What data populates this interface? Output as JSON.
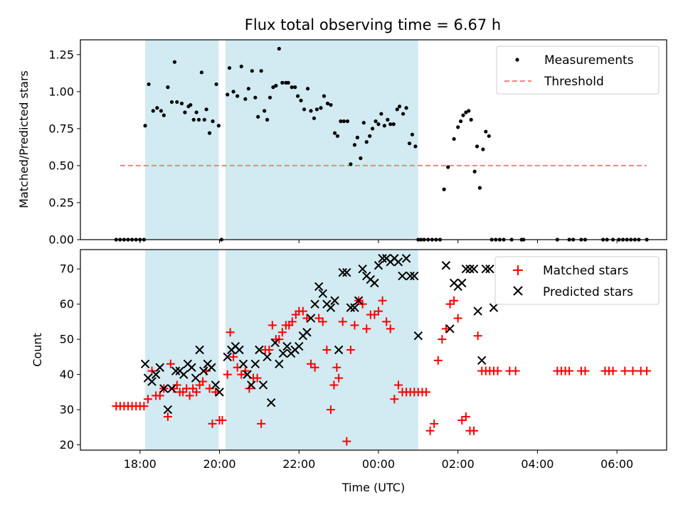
{
  "title": "Flux total observing time = 6.67 h",
  "colors": {
    "shade": "#add8e6",
    "measurement": "#000000",
    "threshold": "#ff7f7f",
    "matched": "#ff0000",
    "predicted": "#000000"
  },
  "chart_data": [
    {
      "type": "scatter",
      "name": "ratio-panel",
      "ylabel": "Matched/Predicted stars",
      "xlabel": "",
      "xlim": [
        16.5,
        31.25
      ],
      "ylim": [
        0,
        1.35
      ],
      "yticks": [
        0,
        0.25,
        0.5,
        0.75,
        1.0,
        1.25
      ],
      "ytick_labels": [
        "0.00",
        "0.25",
        "0.50",
        "0.75",
        "1.00",
        "1.25"
      ],
      "grid": false,
      "legend": {
        "placement": "upper-right",
        "entries": [
          "Measurements",
          "Threshold"
        ]
      },
      "shaded_intervals": [
        [
          18.13,
          19.98
        ],
        [
          20.15,
          25.0
        ]
      ],
      "threshold": {
        "name": "Threshold",
        "y": 0.5,
        "x": [
          17.5,
          30.75
        ]
      },
      "series": [
        {
          "name": "Measurements",
          "x": [
            17.4,
            17.5,
            17.6,
            17.7,
            17.8,
            17.9,
            18.0,
            18.1,
            18.13,
            18.22,
            18.33,
            18.43,
            18.53,
            18.6,
            18.7,
            18.8,
            18.87,
            18.93,
            19.05,
            19.13,
            19.22,
            19.27,
            19.35,
            19.42,
            19.48,
            19.55,
            19.62,
            19.67,
            19.75,
            19.83,
            19.92,
            19.98,
            20.05,
            20.2,
            20.25,
            20.35,
            20.45,
            20.55,
            20.65,
            20.73,
            20.82,
            20.9,
            20.97,
            21.05,
            21.13,
            21.2,
            21.27,
            21.35,
            21.42,
            21.5,
            21.58,
            21.67,
            21.73,
            21.82,
            21.9,
            21.97,
            22.05,
            22.13,
            22.22,
            22.3,
            22.38,
            22.45,
            22.55,
            22.63,
            22.72,
            22.8,
            22.9,
            22.97,
            23.05,
            23.13,
            23.22,
            23.3,
            23.4,
            23.47,
            23.55,
            23.63,
            23.7,
            23.78,
            23.85,
            23.93,
            24.0,
            24.07,
            24.15,
            24.23,
            24.3,
            24.38,
            24.47,
            24.53,
            24.62,
            24.7,
            24.78,
            24.85,
            24.93,
            25.0,
            25.07,
            25.15,
            25.25,
            25.35,
            25.45,
            25.55,
            25.65,
            25.75,
            25.9,
            26.0,
            26.07,
            26.13,
            26.2,
            26.27,
            26.33,
            26.42,
            26.48,
            26.55,
            26.63,
            26.7,
            26.78,
            26.85,
            26.95,
            27.05,
            27.15,
            27.35,
            27.6,
            27.65,
            28.5,
            28.8,
            28.9,
            29.1,
            29.2,
            29.65,
            29.75,
            29.9,
            30.05,
            30.15,
            30.25,
            30.35,
            30.45,
            30.55,
            30.75
          ],
          "y": [
            0,
            0,
            0,
            0,
            0,
            0,
            0,
            0,
            0.77,
            1.05,
            0.87,
            0.89,
            0.87,
            0.84,
            1.03,
            0.93,
            1.2,
            0.93,
            0.92,
            0.86,
            0.9,
            0.91,
            0.81,
            0.86,
            0.81,
            1.13,
            0.81,
            0.88,
            0.72,
            0.8,
            1.05,
            0.77,
            0.0,
            0.98,
            1.16,
            1.0,
            0.97,
            1.17,
            0.95,
            1.02,
            1.14,
            0.96,
            0.83,
            1.14,
            0.87,
            0.81,
            0.96,
            1.03,
            1.04,
            1.29,
            1.06,
            1.06,
            1.06,
            1.03,
            1.03,
            0.97,
            0.94,
            0.88,
            1.02,
            0.87,
            0.82,
            0.88,
            0.89,
            0.97,
            0.92,
            0.91,
            0.72,
            0.7,
            0.8,
            0.8,
            0.8,
            0.51,
            0.64,
            0.69,
            0.55,
            0.79,
            0.66,
            0.7,
            0.75,
            0.8,
            0.78,
            0.85,
            0.77,
            0.81,
            0.78,
            0.78,
            0.88,
            0.9,
            0.85,
            0.89,
            0.65,
            0.71,
            0.63,
            0,
            0,
            0,
            0,
            0,
            0,
            0,
            0.34,
            0.49,
            0.68,
            0.76,
            0.8,
            0.84,
            0.86,
            0.87,
            0.81,
            0.46,
            0.63,
            0.35,
            0.61,
            0.73,
            0.7,
            0,
            0,
            0,
            0,
            0,
            0,
            0,
            0,
            0,
            0,
            0,
            0,
            0,
            0,
            0,
            0,
            0,
            0,
            0,
            0,
            0,
            0
          ]
        }
      ]
    },
    {
      "type": "scatter",
      "name": "count-panel",
      "ylabel": "Count",
      "xlabel": "Time (UTC)",
      "xlim": [
        16.5,
        31.25
      ],
      "ylim": [
        18.5,
        75.5
      ],
      "yticks": [
        20,
        30,
        40,
        50,
        60,
        70
      ],
      "ytick_labels": [
        "20",
        "30",
        "40",
        "50",
        "60",
        "70"
      ],
      "xticks": [
        18,
        20,
        22,
        24,
        26,
        28,
        30
      ],
      "xtick_labels": [
        "18:00",
        "20:00",
        "22:00",
        "00:00",
        "02:00",
        "04:00",
        "06:00"
      ],
      "grid": false,
      "legend": {
        "placement": "upper-right",
        "entries": [
          "Matched stars",
          "Predicted stars"
        ]
      },
      "shaded_intervals": [
        [
          18.13,
          19.98
        ],
        [
          20.15,
          25.0
        ]
      ],
      "series": [
        {
          "name": "Matched stars",
          "x": [
            17.4,
            17.5,
            17.6,
            17.7,
            17.8,
            17.9,
            18.0,
            18.1,
            18.2,
            18.3,
            18.4,
            18.5,
            18.6,
            18.7,
            18.77,
            18.85,
            18.93,
            19.0,
            19.08,
            19.17,
            19.25,
            19.33,
            19.42,
            19.5,
            19.58,
            19.67,
            19.75,
            19.82,
            19.9,
            20.0,
            20.07,
            20.2,
            20.27,
            20.35,
            20.45,
            20.55,
            20.65,
            20.75,
            20.85,
            20.95,
            21.05,
            21.15,
            21.25,
            21.33,
            21.42,
            21.5,
            21.58,
            21.67,
            21.75,
            21.83,
            21.92,
            22.0,
            22.1,
            22.2,
            22.3,
            22.4,
            22.5,
            22.6,
            22.7,
            22.8,
            22.88,
            22.95,
            23.0,
            23.1,
            23.2,
            23.3,
            23.4,
            23.5,
            23.6,
            23.7,
            23.8,
            23.9,
            24.0,
            24.1,
            24.2,
            24.3,
            24.4,
            24.5,
            24.6,
            24.7,
            24.8,
            24.9,
            25.0,
            25.1,
            25.2,
            25.3,
            25.4,
            25.5,
            25.6,
            25.7,
            25.8,
            25.9,
            26.0,
            26.1,
            26.2,
            26.3,
            26.4,
            26.5,
            26.6,
            26.7,
            26.8,
            26.9,
            27.0,
            27.3,
            27.45,
            28.5,
            28.6,
            28.7,
            28.8,
            29.1,
            29.2,
            29.7,
            29.8,
            29.9,
            30.2,
            30.4,
            30.6,
            30.75
          ],
          "y": [
            31,
            31,
            31,
            31,
            31,
            31,
            31,
            31,
            33,
            41,
            34,
            34,
            36,
            28,
            43,
            36,
            37,
            35,
            35,
            36,
            34,
            36,
            35,
            37,
            38,
            41,
            36,
            26,
            35,
            27,
            27,
            40,
            52,
            45,
            42,
            40,
            41,
            36,
            39,
            39,
            26,
            47,
            47,
            54,
            50,
            50,
            52,
            54,
            54,
            55,
            57,
            58,
            58,
            56,
            43,
            42,
            56,
            55,
            47,
            30,
            37,
            42,
            39,
            55,
            21,
            47,
            54,
            61,
            60,
            53,
            57,
            57,
            58,
            61,
            55,
            53,
            33,
            37,
            35,
            35,
            35,
            35,
            35,
            35,
            35,
            24,
            26,
            44,
            50,
            53,
            60,
            61,
            56,
            27,
            28,
            24,
            24,
            51,
            41,
            41,
            41,
            41,
            41,
            41,
            41,
            41,
            41,
            41,
            41,
            41,
            41,
            41,
            41,
            41,
            41,
            41,
            41,
            41
          ]
        },
        {
          "name": "Predicted stars",
          "x": [
            18.13,
            18.2,
            18.3,
            18.4,
            18.5,
            18.6,
            18.7,
            18.8,
            18.9,
            19.0,
            19.1,
            19.2,
            19.3,
            19.4,
            19.5,
            19.6,
            19.7,
            19.8,
            19.9,
            20.0,
            20.2,
            20.3,
            20.4,
            20.5,
            20.6,
            20.7,
            20.8,
            20.9,
            21.0,
            21.1,
            21.2,
            21.3,
            21.4,
            21.5,
            21.6,
            21.7,
            21.8,
            21.9,
            22.0,
            22.1,
            22.2,
            22.3,
            22.4,
            22.5,
            22.6,
            22.7,
            22.8,
            22.9,
            23.0,
            23.1,
            23.2,
            23.3,
            23.4,
            23.5,
            23.6,
            23.7,
            23.8,
            23.9,
            24.0,
            24.1,
            24.2,
            24.3,
            24.4,
            24.5,
            24.6,
            24.7,
            24.8,
            24.9,
            25.0,
            25.7,
            25.8,
            25.9,
            26.0,
            26.1,
            26.2,
            26.3,
            26.4,
            26.5,
            26.6,
            26.7,
            26.8,
            26.9
          ],
          "y": [
            43,
            39,
            38,
            40,
            42,
            36,
            30,
            36,
            41,
            41,
            40,
            43,
            42,
            39,
            47,
            41,
            43,
            42,
            37,
            35,
            45,
            47,
            48,
            47,
            43,
            40,
            37,
            43,
            47,
            37,
            45,
            32,
            49,
            43,
            46,
            48,
            46,
            47,
            48,
            51,
            52,
            56,
            60,
            65,
            63,
            60,
            59,
            61,
            47,
            69,
            69,
            59,
            59,
            61,
            70,
            68,
            67,
            66,
            71,
            73,
            73,
            72,
            73,
            72,
            68,
            73,
            68,
            68,
            51,
            71,
            53,
            66,
            65,
            66,
            70,
            70,
            70,
            58,
            44,
            70,
            70,
            59
          ]
        }
      ]
    }
  ]
}
